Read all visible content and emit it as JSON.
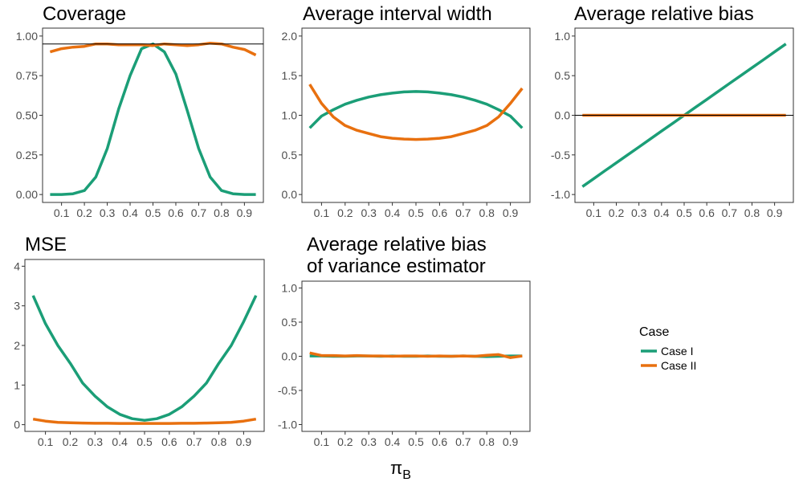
{
  "figure": {
    "xlabel_main": "π",
    "xlabel_sub": "B"
  },
  "legend": {
    "title": "Case",
    "items": [
      "Case I",
      "Case II"
    ]
  },
  "colors": {
    "case1": "#1b9e77",
    "case2": "#e8700f",
    "refline": "#000000",
    "panel_border": "#333333",
    "tick_text": "#4d4d4d"
  },
  "chart_data": [
    {
      "id": "coverage",
      "type": "line",
      "title": [
        "Coverage"
      ],
      "x": [
        0.05,
        0.1,
        0.15,
        0.2,
        0.25,
        0.3,
        0.35,
        0.4,
        0.45,
        0.5,
        0.55,
        0.6,
        0.65,
        0.7,
        0.75,
        0.8,
        0.85,
        0.9,
        0.95
      ],
      "xticks": [
        "0.1",
        "0.2",
        "0.3",
        "0.4",
        "0.5",
        "0.6",
        "0.7",
        "0.8",
        "0.9"
      ],
      "xlim": [
        0.017,
        0.983
      ],
      "ylim": [
        -0.05,
        1.05
      ],
      "yticks": [
        0.0,
        0.25,
        0.5,
        0.75,
        1.0
      ],
      "ytick_labels": [
        "0.00",
        "0.25",
        "0.50",
        "0.75",
        "1.00"
      ],
      "hline": 0.95,
      "series": [
        {
          "name": "Case I",
          "values": [
            0.0,
            0.0,
            0.005,
            0.025,
            0.11,
            0.29,
            0.54,
            0.75,
            0.92,
            0.95,
            0.9,
            0.76,
            0.53,
            0.29,
            0.11,
            0.025,
            0.005,
            0.0,
            0.0
          ]
        },
        {
          "name": "Case II",
          "values": [
            0.9,
            0.92,
            0.93,
            0.935,
            0.95,
            0.95,
            0.945,
            0.945,
            0.945,
            0.94,
            0.95,
            0.945,
            0.94,
            0.945,
            0.955,
            0.95,
            0.93,
            0.915,
            0.88
          ]
        }
      ]
    },
    {
      "id": "width",
      "type": "line",
      "title": [
        "Average interval width"
      ],
      "x": [
        0.05,
        0.1,
        0.15,
        0.2,
        0.25,
        0.3,
        0.35,
        0.4,
        0.45,
        0.5,
        0.55,
        0.6,
        0.65,
        0.7,
        0.75,
        0.8,
        0.85,
        0.9,
        0.95
      ],
      "xticks": [
        "0.1",
        "0.2",
        "0.3",
        "0.4",
        "0.5",
        "0.6",
        "0.7",
        "0.8",
        "0.9"
      ],
      "xlim": [
        0.017,
        0.983
      ],
      "ylim": [
        -0.1,
        2.1
      ],
      "yticks": [
        0.0,
        0.5,
        1.0,
        1.5,
        2.0
      ],
      "ytick_labels": [
        "0.0",
        "0.5",
        "1.0",
        "1.5",
        "2.0"
      ],
      "series": [
        {
          "name": "Case I",
          "values": [
            0.84,
            0.99,
            1.07,
            1.14,
            1.19,
            1.23,
            1.26,
            1.28,
            1.295,
            1.3,
            1.295,
            1.28,
            1.26,
            1.23,
            1.19,
            1.14,
            1.07,
            0.99,
            0.84
          ]
        },
        {
          "name": "Case II",
          "values": [
            1.39,
            1.15,
            0.98,
            0.87,
            0.81,
            0.77,
            0.73,
            0.71,
            0.7,
            0.695,
            0.7,
            0.71,
            0.73,
            0.77,
            0.81,
            0.87,
            0.98,
            1.15,
            1.34
          ]
        }
      ]
    },
    {
      "id": "bias",
      "type": "line",
      "title": [
        "Average relative bias"
      ],
      "x": [
        0.05,
        0.1,
        0.15,
        0.2,
        0.25,
        0.3,
        0.35,
        0.4,
        0.45,
        0.5,
        0.55,
        0.6,
        0.65,
        0.7,
        0.75,
        0.8,
        0.85,
        0.9,
        0.95
      ],
      "xticks": [
        "0.1",
        "0.2",
        "0.3",
        "0.4",
        "0.5",
        "0.6",
        "0.7",
        "0.8",
        "0.9"
      ],
      "xlim": [
        0.017,
        0.983
      ],
      "ylim": [
        -1.1,
        1.1
      ],
      "yticks": [
        -1.0,
        -0.5,
        0.0,
        0.5,
        1.0
      ],
      "ytick_labels": [
        "-1.0",
        "-0.5",
        "0.0",
        "0.5",
        "1.0"
      ],
      "hline": 0.0,
      "series": [
        {
          "name": "Case I",
          "values": [
            -0.9,
            -0.8,
            -0.7,
            -0.6,
            -0.5,
            -0.4,
            -0.3,
            -0.2,
            -0.1,
            0.0,
            0.1,
            0.2,
            0.3,
            0.4,
            0.5,
            0.6,
            0.7,
            0.8,
            0.9
          ]
        },
        {
          "name": "Case II",
          "values": [
            0.0,
            0.0,
            0.0,
            0.0,
            0.0,
            0.0,
            0.0,
            0.0,
            0.0,
            0.0,
            0.0,
            0.0,
            0.0,
            0.0,
            0.0,
            0.0,
            0.0,
            0.0,
            0.0
          ]
        }
      ]
    },
    {
      "id": "mse",
      "type": "line",
      "title": [
        "MSE"
      ],
      "x": [
        0.05,
        0.1,
        0.15,
        0.2,
        0.25,
        0.3,
        0.35,
        0.4,
        0.45,
        0.5,
        0.55,
        0.6,
        0.65,
        0.7,
        0.75,
        0.8,
        0.85,
        0.9,
        0.95
      ],
      "xticks": [
        "0.1",
        "0.2",
        "0.3",
        "0.4",
        "0.5",
        "0.6",
        "0.7",
        "0.8",
        "0.9"
      ],
      "xlim": [
        0.017,
        0.983
      ],
      "ylim": [
        -0.17,
        4.17
      ],
      "yticks": [
        0,
        1,
        2,
        3,
        4
      ],
      "ytick_labels": [
        "0",
        "1",
        "2",
        "3",
        "4"
      ],
      "series": [
        {
          "name": "Case I",
          "values": [
            3.26,
            2.55,
            2.0,
            1.55,
            1.05,
            0.72,
            0.45,
            0.26,
            0.15,
            0.11,
            0.15,
            0.26,
            0.45,
            0.72,
            1.05,
            1.55,
            2.0,
            2.6,
            3.26
          ]
        },
        {
          "name": "Case II",
          "values": [
            0.14,
            0.09,
            0.06,
            0.05,
            0.04,
            0.035,
            0.035,
            0.03,
            0.03,
            0.03,
            0.03,
            0.03,
            0.035,
            0.035,
            0.04,
            0.05,
            0.06,
            0.09,
            0.14
          ]
        }
      ]
    },
    {
      "id": "varbias",
      "type": "line",
      "title": [
        "Average relative bias",
        "of variance estimator"
      ],
      "x": [
        0.05,
        0.1,
        0.15,
        0.2,
        0.25,
        0.3,
        0.35,
        0.4,
        0.45,
        0.5,
        0.55,
        0.6,
        0.65,
        0.7,
        0.75,
        0.8,
        0.85,
        0.9,
        0.95
      ],
      "xticks": [
        "0.1",
        "0.2",
        "0.3",
        "0.4",
        "0.5",
        "0.6",
        "0.7",
        "0.8",
        "0.9"
      ],
      "xlim": [
        0.017,
        0.983
      ],
      "ylim": [
        -1.1,
        1.1
      ],
      "yticks": [
        -1.0,
        -0.5,
        0.0,
        0.5,
        1.0
      ],
      "ytick_labels": [
        "-1.0",
        "-0.5",
        "0.0",
        "0.5",
        "1.0"
      ],
      "series": [
        {
          "name": "Case I",
          "values": [
            0.005,
            0.005,
            0.0,
            0.0,
            0.005,
            0.005,
            0.0,
            0.005,
            0.0,
            0.0,
            0.005,
            0.0,
            0.0,
            0.005,
            0.0,
            -0.005,
            0.0,
            0.005,
            0.005
          ]
        },
        {
          "name": "Case II",
          "values": [
            0.05,
            0.01,
            0.01,
            0.005,
            0.01,
            0.005,
            0.005,
            0.0,
            0.005,
            0.005,
            0.0,
            0.005,
            0.0,
            0.005,
            0.0,
            0.015,
            0.025,
            -0.02,
            0.005
          ]
        }
      ]
    }
  ]
}
